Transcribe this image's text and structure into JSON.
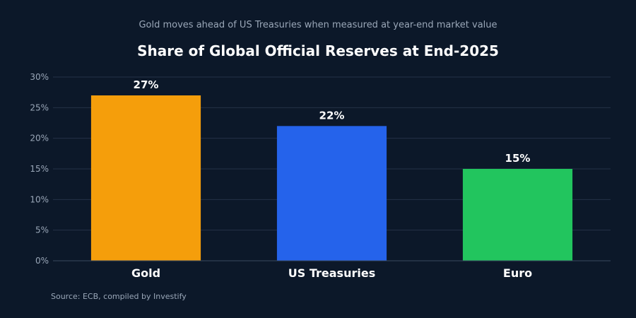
{
  "chart_data": {
    "type": "bar",
    "subtitle": "Gold moves ahead of US Treasuries when measured at year-end market value",
    "title": "Share of Global Official Reserves at End-2025",
    "categories": [
      "Gold",
      "US Treasuries",
      "Euro"
    ],
    "values": [
      27,
      22,
      15
    ],
    "data_labels": [
      "27%",
      "22%",
      "15%"
    ],
    "colors": [
      "#f59e0b",
      "#2563eb",
      "#22c55e"
    ],
    "ylim": [
      0,
      30
    ],
    "yticks": [
      0,
      5,
      10,
      15,
      20,
      25,
      30
    ],
    "ytick_labels": [
      "0%",
      "5%",
      "10%",
      "15%",
      "20%",
      "25%",
      "30%"
    ],
    "xlabel": "",
    "ylabel": "",
    "grid": true,
    "legend": "none",
    "source": "Source: ECB, compiled by Investify"
  }
}
